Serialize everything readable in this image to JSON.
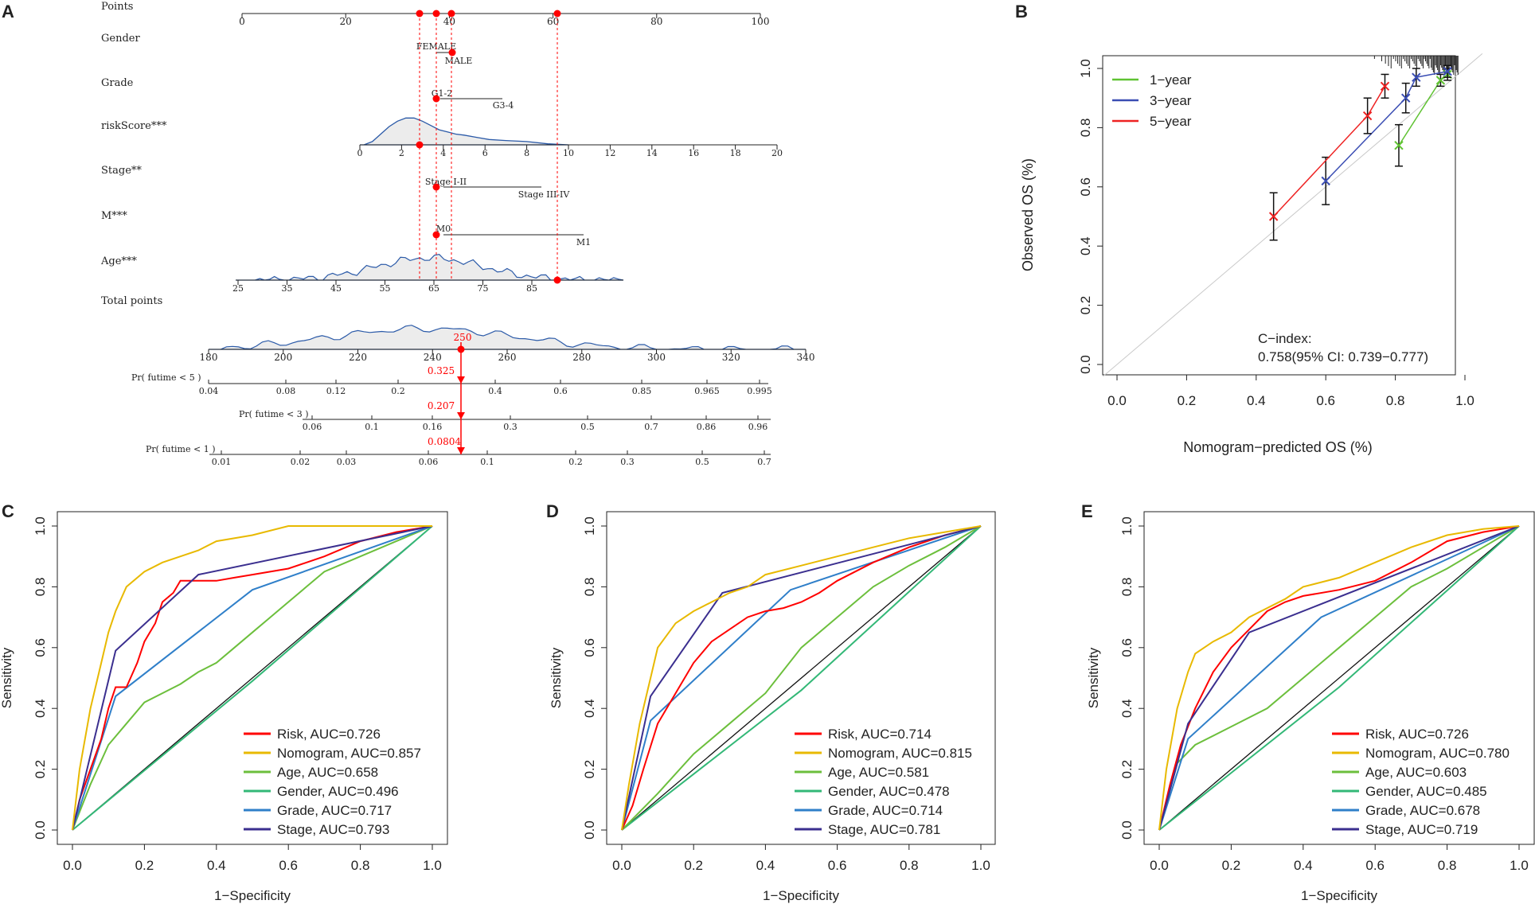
{
  "colors": {
    "red": "#ff0000",
    "gold": "#e8b900",
    "green": "#6cbf3c",
    "lightgreen": "#33b877",
    "blue": "#2f7fc9",
    "purple": "#3b2f8f",
    "calib_green": "#5fc232",
    "calib_blue": "#3a4db3",
    "calib_red": "#ee2222",
    "density_fill": "#ececec",
    "density_line": "#2b5aa8"
  },
  "panel_labels": [
    "A",
    "B",
    "C",
    "D",
    "E"
  ],
  "chart_data": [
    {
      "panel": "A",
      "type": "nomogram",
      "variables": [
        {
          "name": "Points",
          "ticks": [
            "0",
            "20",
            "40",
            "60",
            "80",
            "100"
          ]
        },
        {
          "name": "Gender",
          "levels": [
            "FEMALE",
            "MALE"
          ]
        },
        {
          "name": "Grade",
          "levels": [
            "G1-2",
            "G3-4"
          ]
        },
        {
          "name": "riskScore***",
          "ticks": [
            "0",
            "2",
            "4",
            "6",
            "8",
            "10",
            "12",
            "14",
            "16",
            "18",
            "20"
          ]
        },
        {
          "name": "Stage**",
          "levels": [
            "Stage I-II",
            "Stage III-IV"
          ]
        },
        {
          "name": "M***",
          "levels": [
            "M0",
            "M1"
          ]
        },
        {
          "name": "Age***",
          "ticks": [
            "25",
            "35",
            "45",
            "55",
            "65",
            "75",
            "85"
          ]
        },
        {
          "name": "Total points",
          "ticks": [
            "180",
            "200",
            "220",
            "240",
            "260",
            "280",
            "300",
            "320",
            "340"
          ]
        },
        {
          "name": "Pr( futime < 5 )",
          "ticks": [
            "0.04",
            "0.08",
            "0.12",
            "0.2",
            "0.4",
            "0.6",
            "0.85",
            "0.965",
            "0.995"
          ]
        },
        {
          "name": "Pr( futime < 3 )",
          "ticks": [
            "0.06",
            "0.1",
            "0.16",
            "0.3",
            "0.5",
            "0.7",
            "0.86",
            "0.96"
          ]
        },
        {
          "name": "Pr( futime < 1 )",
          "ticks": [
            "0.01",
            "0.02",
            "0.03",
            "0.06",
            "0.1",
            "0.2",
            "0.3",
            "0.5",
            "0.7"
          ]
        }
      ],
      "highlight": {
        "total_points": "250",
        "prob5": "0.325",
        "prob3": "0.207",
        "prob1": "0.0804"
      }
    },
    {
      "panel": "B",
      "type": "calibration",
      "xlabel": "Nomogram−predicted OS (%)",
      "ylabel": "Observed OS (%)",
      "xlim": [
        0,
        1
      ],
      "ylim": [
        0,
        1
      ],
      "ticks": [
        "0.0",
        "0.2",
        "0.4",
        "0.6",
        "0.8",
        "1.0"
      ],
      "legend": [
        "1−year",
        "3−year",
        "5−year"
      ],
      "cindex_label": "C−index:",
      "cindex_value": "0.758(95% CI: 0.739−0.777)",
      "series": [
        {
          "name": "1-year",
          "x": [
            0.81,
            0.93,
            0.95
          ],
          "y": [
            0.74,
            0.96,
            0.98
          ],
          "err": [
            0.07,
            0.02,
            0.02
          ]
        },
        {
          "name": "3-year",
          "x": [
            0.6,
            0.83,
            0.86,
            0.95
          ],
          "y": [
            0.62,
            0.9,
            0.97,
            0.99
          ],
          "err": [
            0.08,
            0.05,
            0.03,
            0.02
          ]
        },
        {
          "name": "5-year",
          "x": [
            0.45,
            0.72,
            0.77
          ],
          "y": [
            0.5,
            0.84,
            0.94
          ],
          "err": [
            0.08,
            0.06,
            0.04
          ]
        }
      ]
    },
    {
      "panel": "C",
      "type": "roc",
      "xlabel": "1−Specificity",
      "ylabel": "Sensitivity",
      "ticks": [
        "0.0",
        "0.2",
        "0.4",
        "0.6",
        "0.8",
        "1.0"
      ],
      "series": [
        {
          "name": "Risk",
          "label": "Risk, AUC=0.726",
          "x": [
            0,
            0.02,
            0.05,
            0.08,
            0.1,
            0.12,
            0.15,
            0.18,
            0.2,
            0.23,
            0.25,
            0.28,
            0.3,
            0.35,
            0.4,
            0.45,
            0.5,
            0.6,
            0.7,
            0.8,
            0.9,
            1
          ],
          "y": [
            0,
            0.1,
            0.2,
            0.3,
            0.4,
            0.47,
            0.47,
            0.55,
            0.62,
            0.68,
            0.75,
            0.78,
            0.82,
            0.82,
            0.82,
            0.83,
            0.84,
            0.86,
            0.9,
            0.95,
            0.98,
            1
          ]
        },
        {
          "name": "Nomogram",
          "label": "Nomogram, AUC=0.857",
          "x": [
            0,
            0.02,
            0.05,
            0.08,
            0.1,
            0.12,
            0.15,
            0.2,
            0.25,
            0.3,
            0.35,
            0.4,
            0.5,
            0.6,
            0.7,
            0.8,
            1
          ],
          "y": [
            0,
            0.2,
            0.4,
            0.55,
            0.65,
            0.72,
            0.8,
            0.85,
            0.88,
            0.9,
            0.92,
            0.95,
            0.97,
            1,
            1,
            1,
            1
          ]
        },
        {
          "name": "Age",
          "label": "Age, AUC=0.658",
          "x": [
            0,
            0.05,
            0.1,
            0.15,
            0.2,
            0.25,
            0.3,
            0.35,
            0.4,
            0.45,
            0.5,
            0.55,
            0.6,
            0.65,
            0.7,
            0.8,
            0.9,
            1
          ],
          "y": [
            0,
            0.15,
            0.28,
            0.35,
            0.42,
            0.45,
            0.48,
            0.52,
            0.55,
            0.6,
            0.65,
            0.7,
            0.75,
            0.8,
            0.85,
            0.9,
            0.95,
            1
          ]
        },
        {
          "name": "Gender",
          "label": "Gender, AUC=0.496",
          "x": [
            0,
            0.5,
            1
          ],
          "y": [
            0,
            0.49,
            1
          ]
        },
        {
          "name": "Grade",
          "label": "Grade, AUC=0.717",
          "x": [
            0,
            0.12,
            0.5,
            1
          ],
          "y": [
            0,
            0.44,
            0.79,
            1
          ]
        },
        {
          "name": "Stage",
          "label": "Stage, AUC=0.793",
          "x": [
            0,
            0.12,
            0.35,
            1
          ],
          "y": [
            0,
            0.59,
            0.84,
            1
          ]
        }
      ]
    },
    {
      "panel": "D",
      "type": "roc",
      "xlabel": "1−Specificity",
      "ylabel": "Sensitivity",
      "ticks": [
        "0.0",
        "0.2",
        "0.4",
        "0.6",
        "0.8",
        "1.0"
      ],
      "series": [
        {
          "name": "Risk",
          "label": "Risk, AUC=0.714",
          "x": [
            0,
            0.03,
            0.06,
            0.1,
            0.15,
            0.2,
            0.25,
            0.3,
            0.35,
            0.4,
            0.45,
            0.5,
            0.55,
            0.6,
            0.7,
            0.8,
            0.9,
            1
          ],
          "y": [
            0,
            0.08,
            0.2,
            0.35,
            0.45,
            0.55,
            0.62,
            0.66,
            0.7,
            0.72,
            0.73,
            0.75,
            0.78,
            0.82,
            0.88,
            0.93,
            0.97,
            1
          ]
        },
        {
          "name": "Nomogram",
          "label": "Nomogram, AUC=0.815",
          "x": [
            0,
            0.02,
            0.05,
            0.08,
            0.1,
            0.15,
            0.2,
            0.25,
            0.3,
            0.35,
            0.4,
            0.5,
            0.6,
            0.7,
            0.8,
            0.9,
            1
          ],
          "y": [
            0,
            0.15,
            0.35,
            0.5,
            0.6,
            0.68,
            0.72,
            0.75,
            0.78,
            0.8,
            0.84,
            0.87,
            0.9,
            0.93,
            0.96,
            0.98,
            1
          ]
        },
        {
          "name": "Age",
          "label": "Age, AUC=0.581",
          "x": [
            0,
            0.1,
            0.2,
            0.3,
            0.4,
            0.5,
            0.6,
            0.7,
            0.8,
            0.9,
            1
          ],
          "y": [
            0,
            0.12,
            0.25,
            0.35,
            0.45,
            0.6,
            0.7,
            0.8,
            0.87,
            0.93,
            1
          ]
        },
        {
          "name": "Gender",
          "label": "Gender, AUC=0.478",
          "x": [
            0,
            0.5,
            1
          ],
          "y": [
            0,
            0.46,
            1
          ]
        },
        {
          "name": "Grade",
          "label": "Grade, AUC=0.714",
          "x": [
            0,
            0.08,
            0.47,
            1
          ],
          "y": [
            0,
            0.36,
            0.79,
            1
          ]
        },
        {
          "name": "Stage",
          "label": "Stage, AUC=0.781",
          "x": [
            0,
            0.08,
            0.28,
            1
          ],
          "y": [
            0,
            0.44,
            0.78,
            1
          ]
        }
      ]
    },
    {
      "panel": "E",
      "type": "roc",
      "xlabel": "1−Specificity",
      "ylabel": "Sensitivity",
      "ticks": [
        "0.0",
        "0.2",
        "0.4",
        "0.6",
        "0.8",
        "1.0"
      ],
      "series": [
        {
          "name": "Risk",
          "label": "Risk, AUC=0.726",
          "x": [
            0,
            0.03,
            0.06,
            0.1,
            0.15,
            0.2,
            0.25,
            0.3,
            0.35,
            0.4,
            0.5,
            0.6,
            0.7,
            0.8,
            0.9,
            1
          ],
          "y": [
            0,
            0.15,
            0.28,
            0.4,
            0.52,
            0.6,
            0.66,
            0.72,
            0.75,
            0.77,
            0.79,
            0.82,
            0.88,
            0.95,
            0.98,
            1
          ]
        },
        {
          "name": "Nomogram",
          "label": "Nomogram, AUC=0.780",
          "x": [
            0,
            0.02,
            0.05,
            0.08,
            0.1,
            0.15,
            0.2,
            0.25,
            0.3,
            0.35,
            0.4,
            0.5,
            0.6,
            0.7,
            0.8,
            0.9,
            1
          ],
          "y": [
            0,
            0.2,
            0.4,
            0.52,
            0.58,
            0.62,
            0.65,
            0.7,
            0.73,
            0.76,
            0.8,
            0.83,
            0.88,
            0.93,
            0.97,
            0.99,
            1
          ]
        },
        {
          "name": "Age",
          "label": "Age, AUC=0.603",
          "x": [
            0,
            0.05,
            0.1,
            0.2,
            0.3,
            0.4,
            0.5,
            0.6,
            0.7,
            0.8,
            0.9,
            1
          ],
          "y": [
            0,
            0.22,
            0.28,
            0.34,
            0.4,
            0.5,
            0.6,
            0.7,
            0.8,
            0.86,
            0.93,
            1
          ]
        },
        {
          "name": "Gender",
          "label": "Gender, AUC=0.485",
          "x": [
            0,
            0.5,
            1
          ],
          "y": [
            0,
            0.47,
            1
          ]
        },
        {
          "name": "Grade",
          "label": "Grade, AUC=0.678",
          "x": [
            0,
            0.08,
            0.45,
            1
          ],
          "y": [
            0,
            0.3,
            0.7,
            1
          ]
        },
        {
          "name": "Stage",
          "label": "Stage, AUC=0.719",
          "x": [
            0,
            0.08,
            0.25,
            1
          ],
          "y": [
            0,
            0.35,
            0.65,
            1
          ]
        }
      ]
    }
  ]
}
